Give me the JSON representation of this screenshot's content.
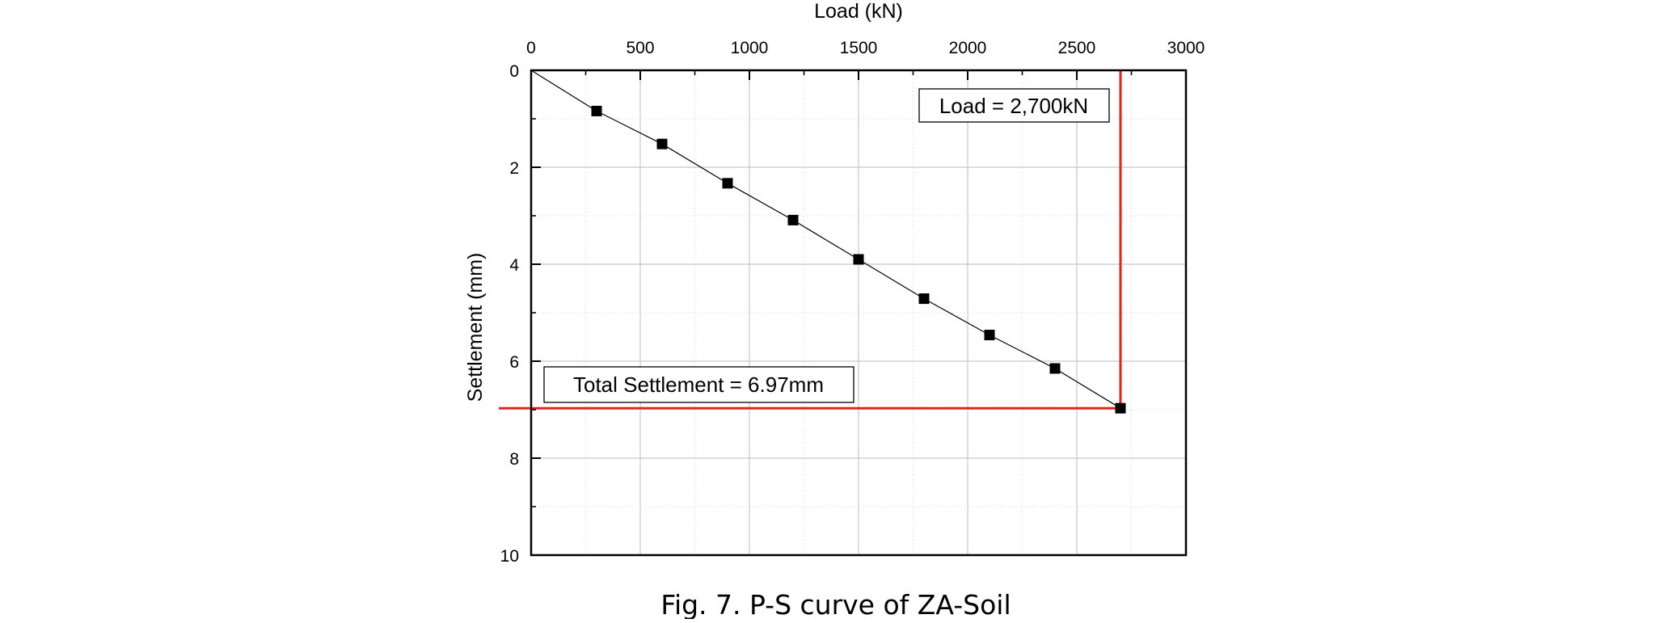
{
  "chart_data": {
    "type": "scatter",
    "xlabel": "Load (kN)",
    "ylabel": "Settlement (mm)",
    "xlim": [
      0,
      3000
    ],
    "ylim": [
      0,
      10
    ],
    "y_inverted": true,
    "x_axis_position": "top",
    "x_ticks": [
      0,
      500,
      1000,
      1500,
      2000,
      2500,
      3000
    ],
    "y_ticks": [
      0,
      2,
      4,
      6,
      8,
      10
    ],
    "x_tick_labels": [
      "0",
      "500",
      "1000",
      "1500",
      "2000",
      "2500",
      "3000"
    ],
    "y_tick_labels": [
      "0",
      "2",
      "4",
      "6",
      "8",
      "10"
    ],
    "grid": true,
    "series": [
      {
        "color": "#000000",
        "marker": "square",
        "line": true,
        "x": [
          0,
          300,
          600,
          900,
          1200,
          1500,
          1800,
          2100,
          2400,
          2700
        ],
        "y": [
          0,
          0.84,
          1.52,
          2.33,
          3.09,
          3.9,
          4.71,
          5.46,
          6.15,
          6.97
        ]
      }
    ],
    "reference_lines": {
      "color": "#e8231e",
      "load": 2700,
      "settlement": 6.97
    },
    "annotations": {
      "load": "Load = 2,700kN",
      "settlement": "Total Settlement = 6.97mm"
    }
  },
  "caption": "Fig. 7. P-S curve of ZA-Soil"
}
